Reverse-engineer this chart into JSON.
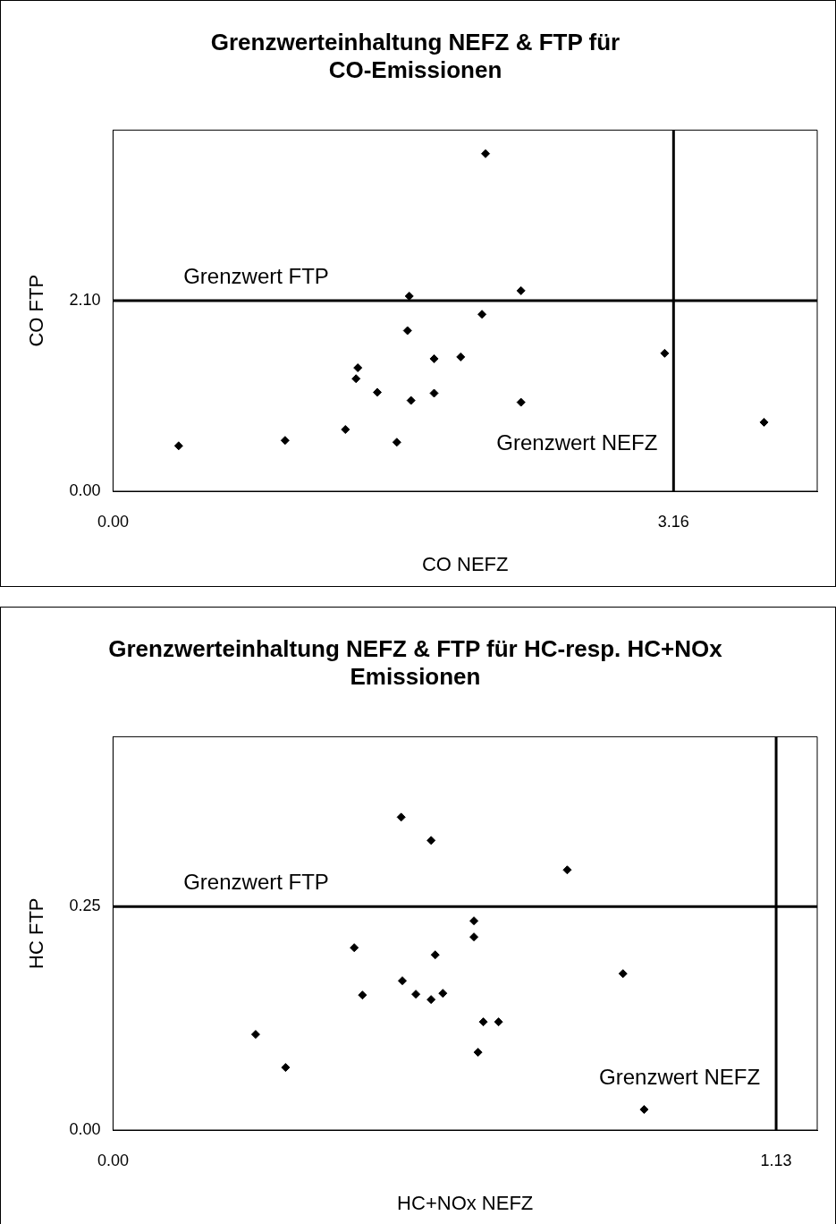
{
  "chart_data": [
    {
      "type": "scatter",
      "title": "Grenzwerteinhaltung NEFZ & FTP für CO-Emissionen",
      "xlabel": "CO NEFZ",
      "ylabel": "CO FTP",
      "marker": "diamond",
      "grid": false,
      "legend": false,
      "xlim": [
        0,
        3.97
      ],
      "ylim": [
        0,
        3.98
      ],
      "xticks": [
        {
          "value": 0,
          "label": "0.00"
        },
        {
          "value": 3.16,
          "label": "3.16"
        }
      ],
      "yticks": [
        {
          "value": 0,
          "label": "0.00"
        },
        {
          "value": 2.1,
          "label": "2.10"
        }
      ],
      "ref_lines": [
        {
          "axis": "y",
          "value": 2.1,
          "label": "Grenzwert FTP"
        },
        {
          "axis": "x",
          "value": 3.16,
          "label": "Grenzwert NEFZ"
        }
      ],
      "series": [
        {
          "color": "#000000",
          "x": [
            0.37,
            0.97,
            1.31,
            1.37,
            1.38,
            1.49,
            1.6,
            1.67,
            1.66,
            1.68,
            1.81,
            1.81,
            1.96,
            2.08,
            2.1,
            2.3,
            2.3,
            3.11,
            3.67
          ],
          "values": [
            0.5,
            0.56,
            0.68,
            1.24,
            1.36,
            1.09,
            0.54,
            2.15,
            1.77,
            1.0,
            1.46,
            1.08,
            1.48,
            1.95,
            3.72,
            2.21,
            0.98,
            1.52,
            0.76
          ]
        }
      ]
    },
    {
      "type": "scatter",
      "title": "Grenzwerteinhaltung NEFZ & FTP für HC-resp. HC+NOx Emissionen",
      "xlabel": "HC+NOx NEFZ",
      "ylabel": "HC FTP",
      "marker": "diamond",
      "grid": false,
      "legend": false,
      "xlim": [
        0,
        1.2
      ],
      "ylim": [
        0,
        0.44
      ],
      "xticks": [
        {
          "value": 0,
          "label": "0.00"
        },
        {
          "value": 1.13,
          "label": "1.13"
        }
      ],
      "yticks": [
        {
          "value": 0,
          "label": "0.00"
        },
        {
          "value": 0.25,
          "label": "0.25"
        }
      ],
      "ref_lines": [
        {
          "axis": "y",
          "value": 0.25,
          "label": "Grenzwert FTP"
        },
        {
          "axis": "x",
          "value": 1.13,
          "label": "Grenzwert NEFZ"
        }
      ],
      "series": [
        {
          "color": "#000000",
          "x": [
            0.243,
            0.294,
            0.411,
            0.425,
            0.491,
            0.493,
            0.516,
            0.542,
            0.542,
            0.549,
            0.562,
            0.615,
            0.615,
            0.622,
            0.631,
            0.657,
            0.774,
            0.869,
            0.905
          ],
          "values": [
            0.107,
            0.07,
            0.204,
            0.151,
            0.35,
            0.167,
            0.152,
            0.324,
            0.146,
            0.196,
            0.153,
            0.216,
            0.234,
            0.087,
            0.121,
            0.121,
            0.291,
            0.175,
            0.023
          ]
        }
      ]
    }
  ]
}
